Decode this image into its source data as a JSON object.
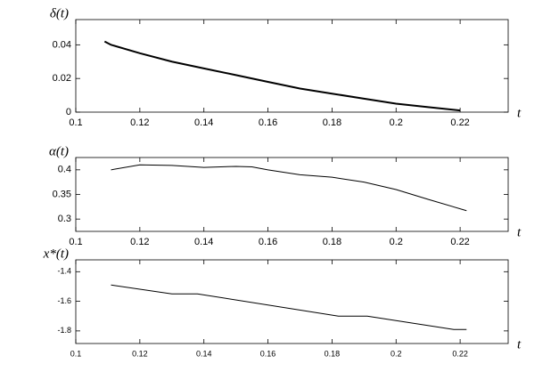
{
  "chart_data": [
    {
      "type": "line",
      "ylabel": "δ(t)",
      "xlabel": "t",
      "color": "#000000",
      "x": [
        0.109,
        0.111,
        0.12,
        0.13,
        0.14,
        0.15,
        0.16,
        0.17,
        0.18,
        0.19,
        0.2,
        0.21,
        0.22
      ],
      "values": [
        0.042,
        0.04,
        0.035,
        0.03,
        0.026,
        0.022,
        0.018,
        0.014,
        0.011,
        0.008,
        0.005,
        0.003,
        0.001
      ],
      "xlim": [
        0.1,
        0.235
      ],
      "xticks": [
        0.1,
        0.12,
        0.14,
        0.16,
        0.18,
        0.2,
        0.22
      ],
      "ylim": [
        0,
        0.055
      ],
      "yticks": [
        0,
        0.02,
        0.04
      ]
    },
    {
      "type": "line",
      "ylabel": "α(t)",
      "xlabel": "t",
      "color": "#000000",
      "x": [
        0.111,
        0.12,
        0.13,
        0.14,
        0.15,
        0.155,
        0.16,
        0.17,
        0.18,
        0.19,
        0.2,
        0.21,
        0.222
      ],
      "values": [
        0.4,
        0.41,
        0.409,
        0.405,
        0.407,
        0.406,
        0.4,
        0.39,
        0.385,
        0.375,
        0.36,
        0.34,
        0.317
      ],
      "xlim": [
        0.1,
        0.235
      ],
      "xticks": [
        0.1,
        0.12,
        0.14,
        0.16,
        0.18,
        0.2,
        0.22
      ],
      "ylim": [
        0.275,
        0.425
      ],
      "yticks": [
        0.3,
        0.35,
        0.4
      ]
    },
    {
      "type": "line",
      "ylabel": "x*(t)",
      "xlabel": "t",
      "color": "#000000",
      "x": [
        0.111,
        0.13,
        0.138,
        0.182,
        0.191,
        0.218,
        0.222
      ],
      "values": [
        -1.49,
        -1.55,
        -1.55,
        -1.7,
        -1.7,
        -1.79,
        -1.79
      ],
      "xlim": [
        0.1,
        0.235
      ],
      "xticks": [
        0.1,
        0.12,
        0.14,
        0.16,
        0.18,
        0.2,
        0.22
      ],
      "ylim": [
        -1.885,
        -1.32
      ],
      "yticks": [
        -1.8,
        -1.6,
        -1.4
      ]
    }
  ]
}
